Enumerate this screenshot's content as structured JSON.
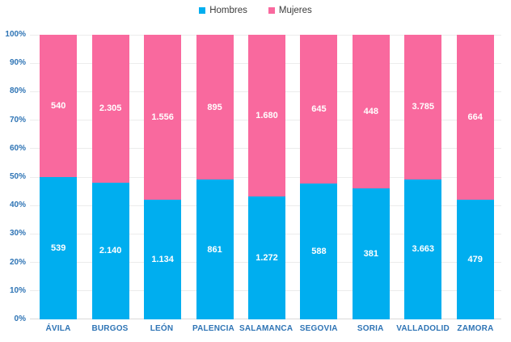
{
  "chart_data": {
    "type": "bar",
    "subtype": "stacked-100-percent",
    "title": "",
    "categories": [
      "ÁVILA",
      "BURGOS",
      "LEÓN",
      "PALENCIA",
      "SALAMANCA",
      "SEGOVIA",
      "SORIA",
      "VALLADOLID",
      "ZAMORA"
    ],
    "series": [
      {
        "name": "Hombres",
        "color": "#00AEEF",
        "position": "bottom",
        "values": [
          539,
          2140,
          1134,
          861,
          1272,
          588,
          381,
          3663,
          479
        ],
        "labels": [
          "539",
          "2.140",
          "1.134",
          "861",
          "1.272",
          "588",
          "381",
          "3.663",
          "479"
        ]
      },
      {
        "name": "Mujeres",
        "color": "#F9699E",
        "position": "top",
        "values": [
          540,
          2305,
          1556,
          895,
          1680,
          645,
          448,
          3785,
          664
        ],
        "labels": [
          "540",
          "2.305",
          "1.556",
          "895",
          "1.680",
          "645",
          "448",
          "3.785",
          "664"
        ]
      }
    ],
    "y_axis": {
      "ticks": [
        "0%",
        "10%",
        "20%",
        "30%",
        "40%",
        "50%",
        "60%",
        "70%",
        "80%",
        "90%",
        "100%"
      ],
      "min": 0,
      "max": 100
    },
    "grid": true,
    "legend_position": "top"
  },
  "styles": {
    "hombres_color": "#00AEEF",
    "mujeres_color": "#F9699E",
    "axis_label_color": "#2E74B5",
    "legend_text_color": "#3B3B3B",
    "gridline_color": "#ECECEC",
    "axis_line_color": "#D9D9D9",
    "data_label_color": "#FFFFFF",
    "background": "#FFFFFF"
  }
}
